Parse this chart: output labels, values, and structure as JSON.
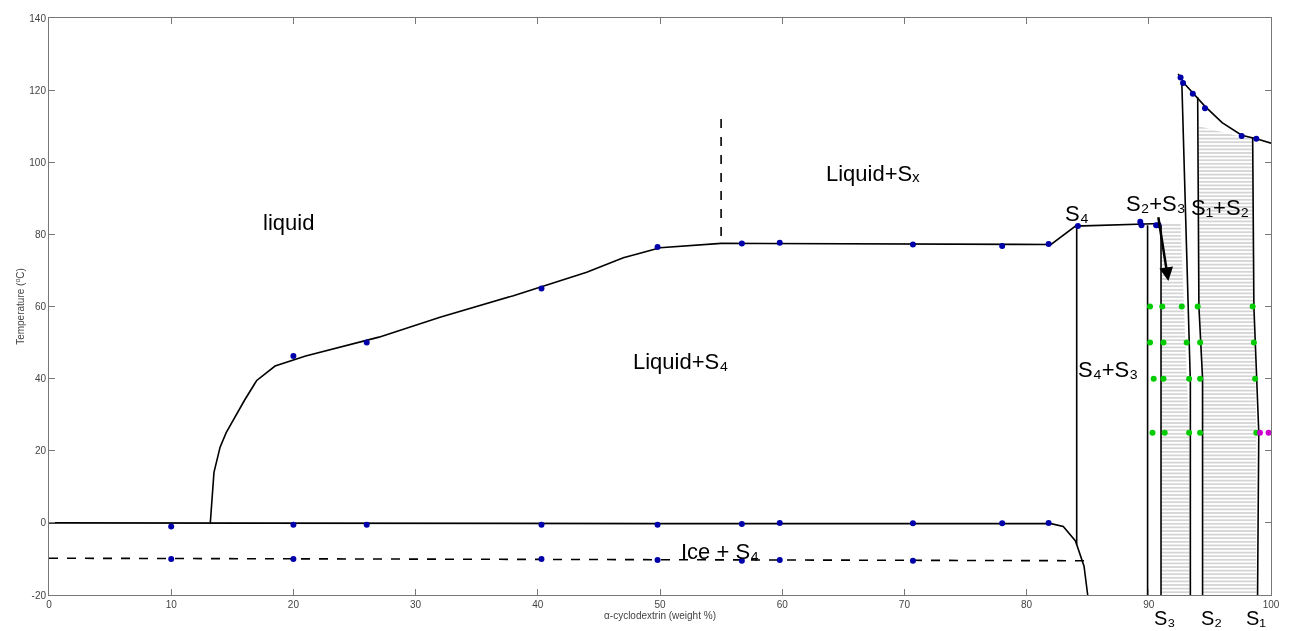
{
  "chart_data": {
    "type": "line",
    "xlabel": "α-cyclodextrin (weight %)",
    "ylabel": "Temperature ($^{o}$C)",
    "xlim": [
      0,
      100
    ],
    "ylim": [
      -20,
      140
    ],
    "xticks": [
      0,
      10,
      20,
      30,
      40,
      50,
      60,
      70,
      80,
      90,
      100
    ],
    "yticks": [
      -20,
      0,
      20,
      40,
      60,
      80,
      100,
      120,
      140
    ],
    "series": [
      {
        "type": "area",
        "color": "#555555",
        "x": [
          91,
          92.6,
          93.3,
          93.3,
          91
        ],
        "values": [
          83,
          83,
          25,
          -20,
          -20
        ]
      },
      {
        "type": "area",
        "color": "#555555",
        "x": [
          94.1,
          97.6,
          98.5,
          98.6,
          98.8,
          98.8,
          94.4,
          94.3,
          94.1
        ],
        "values": [
          110,
          107,
          107,
          60,
          25,
          -20,
          -20,
          40,
          60
        ]
      },
      {
        "color": "#000000",
        "marker": "none",
        "line_style": "solid",
        "x": [
          13.2,
          13.5,
          14,
          14.5,
          16,
          17,
          18.5,
          21,
          27,
          32,
          38,
          44,
          47,
          50,
          55,
          82,
          84,
          91
        ],
        "values": [
          0,
          14,
          21,
          25,
          34,
          39.5,
          43.5,
          46.3,
          51.5,
          57,
          63,
          69.5,
          73.5,
          76.3,
          77.5,
          77.2,
          82.3,
          83
        ]
      },
      {
        "color": "#000000",
        "marker": "none",
        "line_style": "solid",
        "x": [
          0,
          50,
          82,
          83,
          84,
          84.7,
          85
        ],
        "values": [
          0,
          -0.2,
          -0.2,
          -1,
          -5,
          -12,
          -20
        ]
      },
      {
        "color": "#000000",
        "marker": "none",
        "line_style": "dashed",
        "x": [
          0,
          85
        ],
        "values": [
          -9.8,
          -10.5
        ]
      },
      {
        "color": "#000000",
        "marker": "none",
        "line_style": "dashed",
        "x": [
          55,
          55
        ],
        "values": [
          112,
          78
        ]
      },
      {
        "color": "#000000",
        "marker": "none",
        "line_style": "solid",
        "x": [
          84.1,
          84.1
        ],
        "values": [
          82.3,
          -6
        ]
      },
      {
        "color": "#000000",
        "marker": "none",
        "line_style": "solid",
        "x": [
          89.9,
          89.9
        ],
        "values": [
          82.5,
          -20
        ]
      },
      {
        "color": "#000000",
        "marker": "none",
        "line_style": "solid",
        "x": [
          91,
          91
        ],
        "values": [
          82.5,
          -20
        ]
      },
      {
        "color": "#000000",
        "marker": "none",
        "line_style": "solid",
        "x": [
          92.7,
          93.4,
          93.4
        ],
        "values": [
          122.5,
          39,
          -20
        ]
      },
      {
        "color": "#000000",
        "marker": "none",
        "line_style": "solid",
        "x": [
          94,
          94.1,
          94.4,
          94.4
        ],
        "values": [
          118,
          60,
          40,
          -20
        ]
      },
      {
        "color": "#000000",
        "marker": "none",
        "line_style": "solid",
        "x": [
          98.5,
          98.6,
          99,
          98.9
        ],
        "values": [
          107,
          60,
          25,
          -20
        ]
      },
      {
        "color": "#000000",
        "marker": "none",
        "line_style": "solid",
        "x": [
          92.4,
          93,
          94.6,
          96,
          97.6,
          98.8,
          100
        ],
        "values": [
          124.5,
          121.5,
          115.5,
          111,
          107.5,
          106.5,
          105.3
        ]
      },
      {
        "type": "scatter",
        "color": "#0000aa",
        "marker": "circle",
        "x": [
          10,
          20,
          26,
          40.3,
          49.8,
          56.7,
          59.8,
          70.7,
          78,
          81.8,
          10,
          20,
          40.3,
          49.8,
          56.7,
          59.8,
          70.7,
          20,
          26,
          40.3,
          49.8,
          56.7,
          59.8,
          70.7,
          78,
          81.8,
          84.2,
          89.3,
          89.4,
          90.6,
          90.8,
          92.6,
          92.8,
          93.6,
          94.6,
          97.6,
          98.8
        ],
        "values": [
          -1,
          -0.5,
          -0.5,
          -0.5,
          -0.5,
          -0.3,
          0,
          -0.1,
          -0.1,
          0,
          -10,
          -10,
          -10,
          -10.3,
          -10.5,
          -10.3,
          -10.5,
          46.3,
          50,
          65,
          76.5,
          77.5,
          77.7,
          77.2,
          76.8,
          77.3,
          82.3,
          83.5,
          82.5,
          82.5,
          82.5,
          123.5,
          122,
          119,
          115,
          107.3,
          106.5
        ]
      },
      {
        "type": "scatter",
        "color": "#00cc00",
        "marker": "circle",
        "x": [
          90.1,
          91.1,
          92.7,
          94.0,
          98.5,
          90.1,
          91.2,
          93.1,
          94.2,
          98.6,
          90.4,
          91.2,
          93.3,
          94.2,
          98.7,
          90.3,
          91.3,
          93.3,
          94.2,
          98.8
        ],
        "values": [
          60,
          60,
          60,
          60,
          60,
          50,
          50,
          50,
          50,
          50,
          40,
          40,
          40,
          40,
          40,
          25,
          25,
          25,
          25,
          25
        ]
      },
      {
        "type": "scatter",
        "color": "#cc00cc",
        "marker": "circle",
        "x": [
          99.1,
          99.8
        ],
        "values": [
          25,
          25
        ]
      }
    ],
    "annotations": [
      "liquid",
      "Liquid+Sₓ",
      "Liquid+S₄",
      "S₄",
      "S₂+S₃",
      "S₁+S₂",
      "S₄+S₃",
      "Ice + S₄",
      "S₃",
      "S₂",
      "S₁"
    ]
  }
}
